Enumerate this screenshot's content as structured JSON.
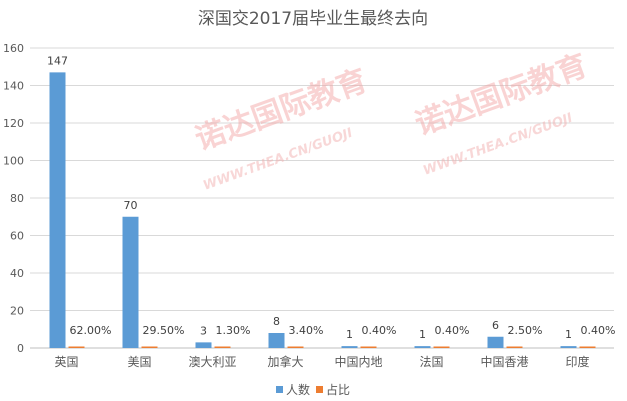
{
  "watermark": {
    "text": "诺达国际教育",
    "url": "WWW.THEA.CN/GUOJI"
  },
  "chart_data": {
    "type": "bar",
    "title": "深国交2017届毕业生最终去向",
    "categories": [
      "英国",
      "美国",
      "澳大利亚",
      "加拿大",
      "中国内地",
      "法国",
      "中国香港",
      "印度"
    ],
    "series": [
      {
        "name": "人数",
        "color": "#5b9bd5",
        "values": [
          147,
          70,
          3,
          8,
          1,
          1,
          6,
          1
        ],
        "labels": [
          "147",
          "70",
          "3",
          "8",
          "1",
          "1",
          "6",
          "1"
        ]
      },
      {
        "name": "占比",
        "color": "#ed7d31",
        "values": [
          0.62,
          0.295,
          0.013,
          0.034,
          0.004,
          0.004,
          0.025,
          0.004
        ],
        "labels": [
          "62.00%",
          "29.50%",
          "1.30%",
          "3.40%",
          "0.40%",
          "0.40%",
          "2.50%",
          "0.40%"
        ]
      }
    ],
    "ylim": [
      0,
      160
    ],
    "yticks": [
      0,
      20,
      40,
      60,
      80,
      100,
      120,
      140,
      160
    ],
    "grid": true,
    "legend": "bottom"
  }
}
